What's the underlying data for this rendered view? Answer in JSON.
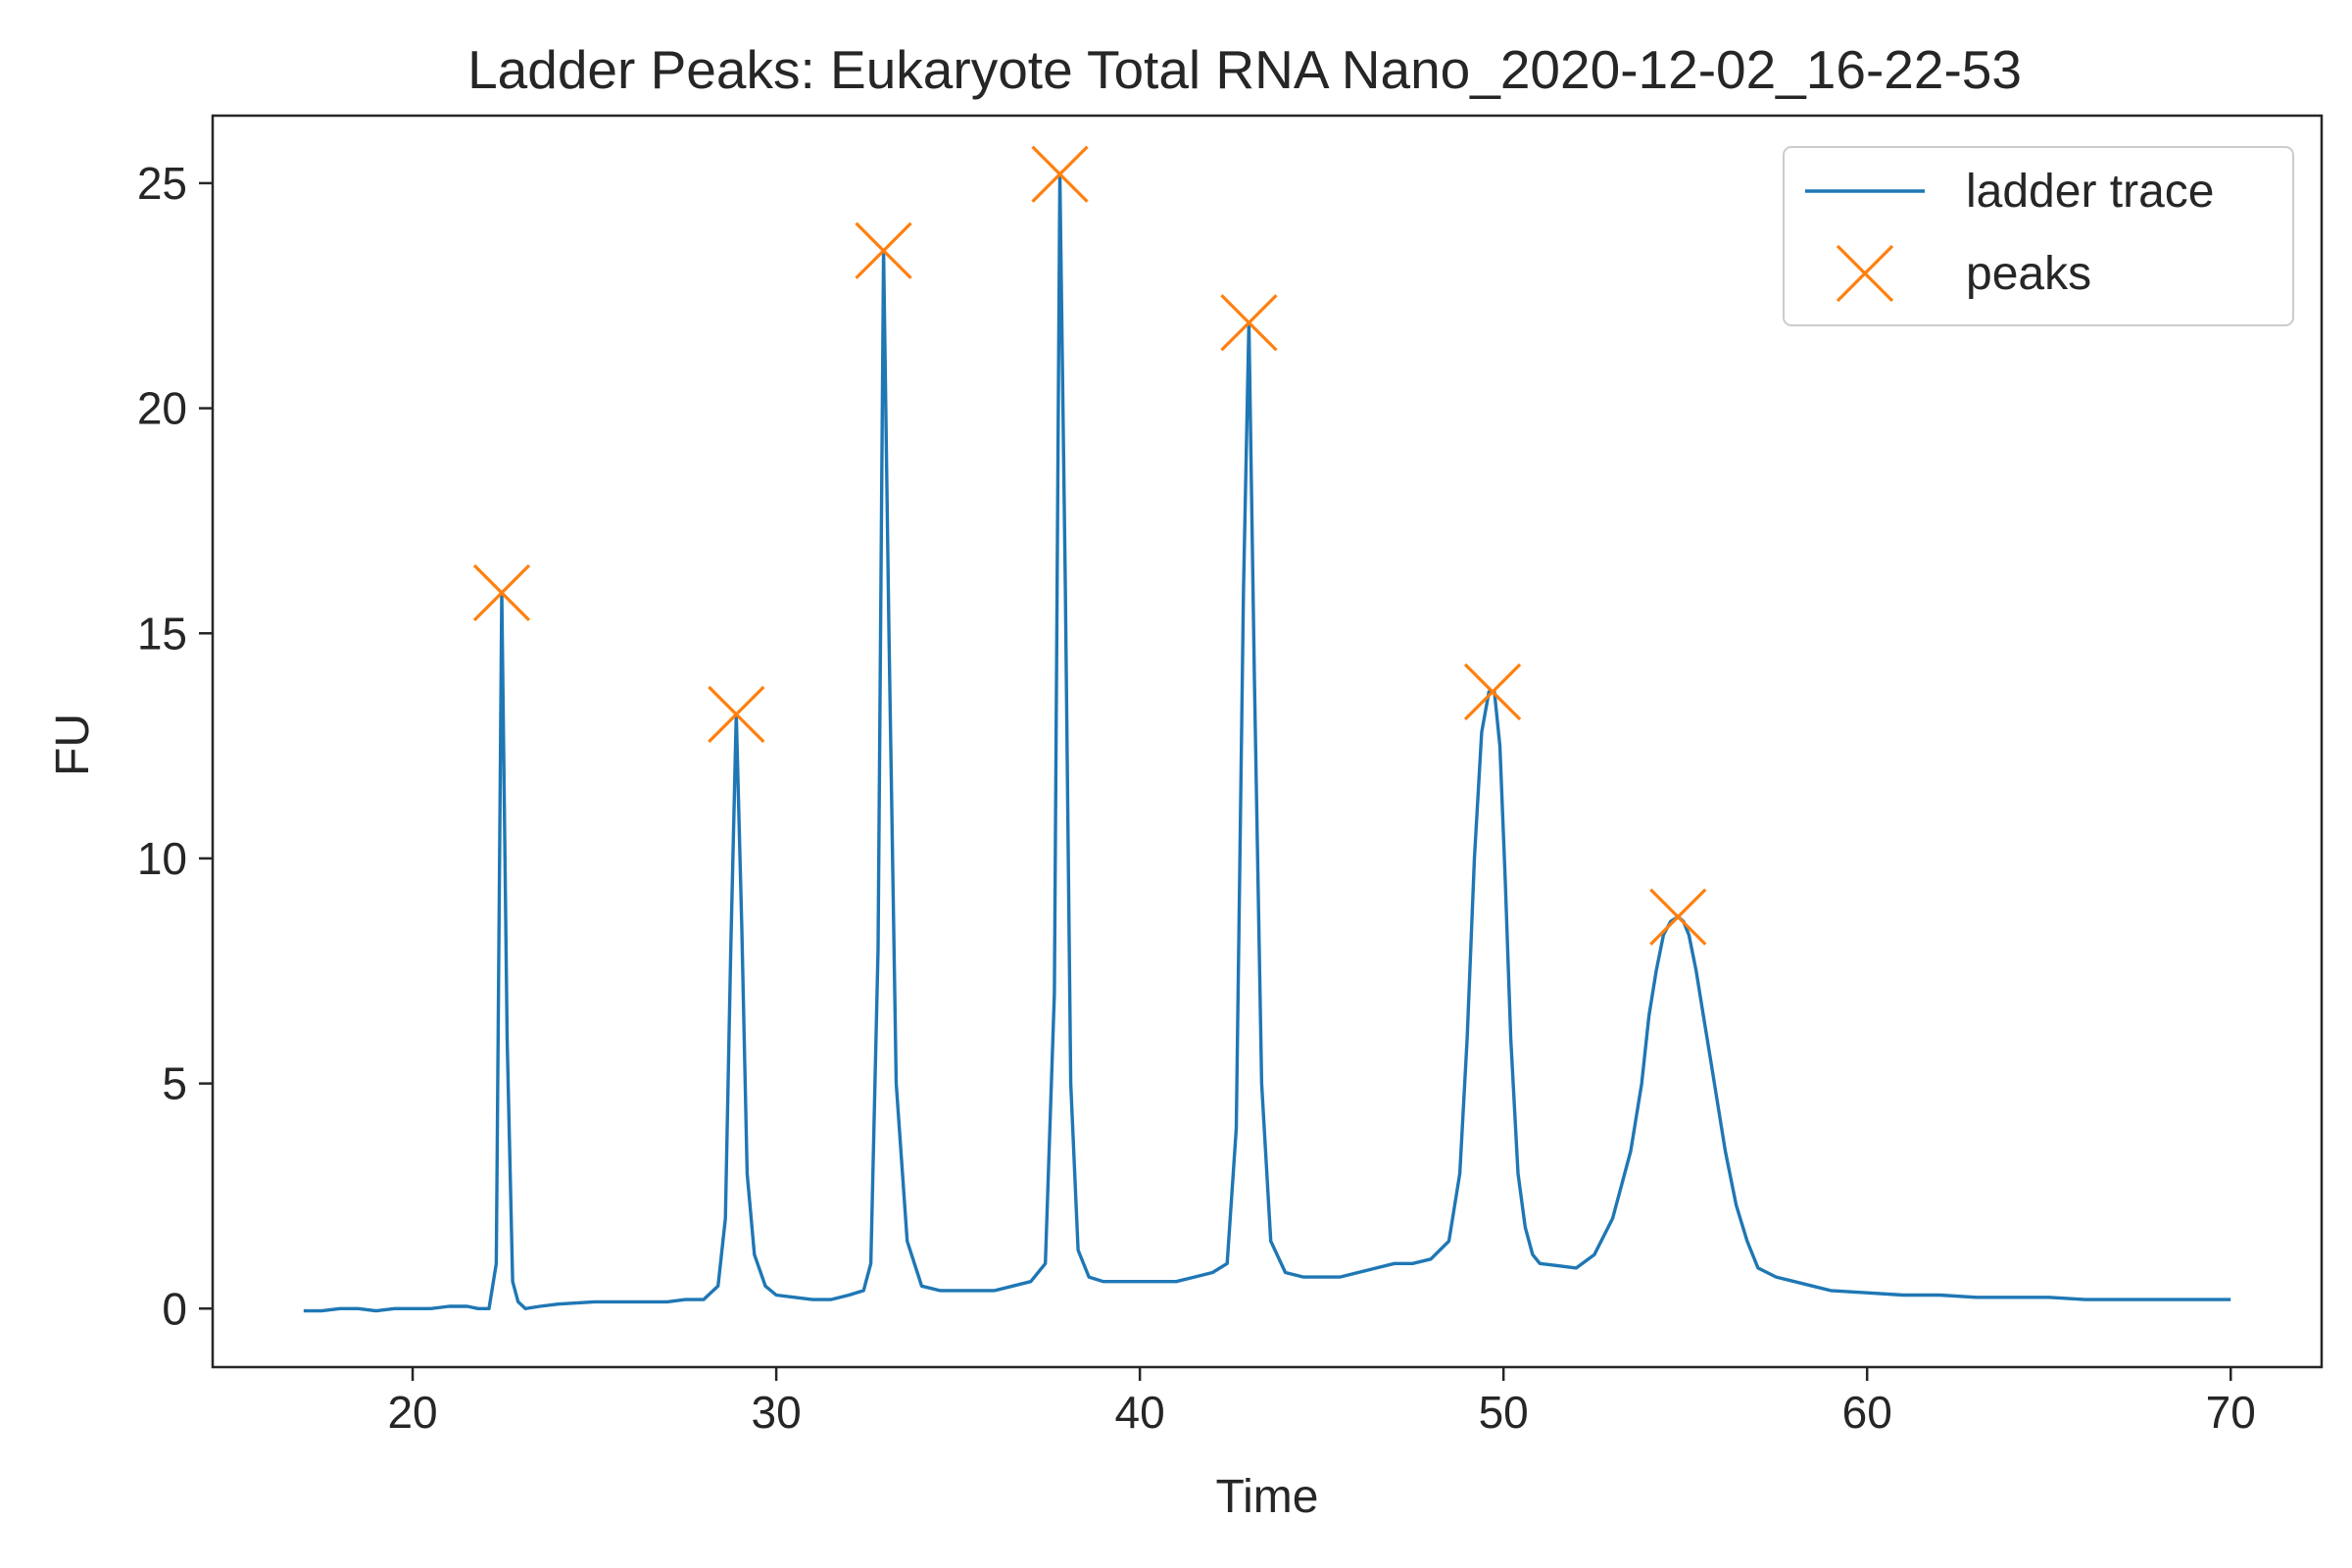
{
  "chart_data": {
    "type": "line",
    "title": "Ladder Peaks: Eukaryote Total RNA Nano_2020-12-02_16-22-53",
    "xlabel": "Time",
    "ylabel": "FU",
    "xlim": [
      14.5,
      72.5
    ],
    "ylim": [
      -1.3,
      26.5
    ],
    "xticks": [
      20,
      30,
      40,
      50,
      60,
      70
    ],
    "yticks": [
      0,
      5,
      10,
      15,
      20,
      25
    ],
    "grid": false,
    "legend_position": "top-right",
    "colors": {
      "trace": "#1f77b4",
      "peaks": "#ff7f0e",
      "axes": "#262626"
    },
    "series": [
      {
        "name": "ladder trace",
        "kind": "line",
        "x": [
          17.0,
          17.5,
          18.0,
          18.5,
          19.0,
          19.5,
          20.0,
          20.5,
          21.0,
          21.5,
          21.8,
          22.1,
          22.3,
          22.45,
          22.6,
          22.75,
          22.9,
          23.1,
          23.5,
          24.0,
          25.0,
          26.0,
          27.0,
          27.5,
          28.0,
          28.4,
          28.6,
          28.75,
          28.9,
          29.05,
          29.2,
          29.4,
          29.7,
          30.0,
          30.5,
          31.0,
          31.5,
          32.0,
          32.4,
          32.6,
          32.8,
          32.95,
          33.1,
          33.3,
          33.6,
          34.0,
          34.5,
          35.0,
          35.5,
          36.0,
          36.5,
          37.0,
          37.4,
          37.65,
          37.8,
          37.95,
          38.1,
          38.3,
          38.6,
          39.0,
          39.5,
          40.0,
          40.5,
          41.0,
          41.5,
          42.0,
          42.4,
          42.65,
          42.85,
          43.0,
          43.15,
          43.35,
          43.6,
          44.0,
          44.5,
          45.0,
          45.5,
          46.0,
          46.5,
          47.0,
          47.5,
          48.0,
          48.5,
          48.8,
          49.0,
          49.2,
          49.4,
          49.6,
          49.75,
          49.9,
          50.05,
          50.2,
          50.4,
          50.6,
          50.8,
          51.0,
          51.5,
          52.0,
          52.5,
          53.0,
          53.5,
          53.8,
          54.0,
          54.2,
          54.4,
          54.6,
          54.8,
          54.95,
          55.1,
          55.3,
          55.5,
          55.7,
          55.9,
          56.1,
          56.4,
          56.7,
          57.0,
          57.5,
          58.0,
          58.5,
          59.0,
          60.0,
          61.0,
          62.0,
          63.0,
          64.0,
          65.0,
          66.0,
          67.0,
          68.0,
          69.0,
          70.0
        ],
        "y": [
          -0.05,
          -0.05,
          0.0,
          0.0,
          -0.05,
          0.0,
          0.0,
          0.0,
          0.05,
          0.05,
          0.0,
          0.0,
          1.0,
          15.9,
          6.0,
          0.6,
          0.15,
          0.0,
          0.05,
          0.1,
          0.15,
          0.15,
          0.15,
          0.2,
          0.2,
          0.5,
          2.0,
          8.0,
          13.2,
          8.5,
          3.0,
          1.2,
          0.5,
          0.3,
          0.25,
          0.2,
          0.2,
          0.3,
          0.4,
          1.0,
          8.0,
          23.5,
          15.0,
          5.0,
          1.5,
          0.5,
          0.4,
          0.4,
          0.4,
          0.4,
          0.5,
          0.6,
          1.0,
          7.0,
          25.2,
          16.0,
          5.0,
          1.3,
          0.7,
          0.6,
          0.6,
          0.6,
          0.6,
          0.6,
          0.7,
          0.8,
          1.0,
          4.0,
          16.0,
          21.9,
          14.0,
          5.0,
          1.5,
          0.8,
          0.7,
          0.7,
          0.7,
          0.8,
          0.9,
          1.0,
          1.0,
          1.1,
          1.5,
          3.0,
          6.0,
          10.0,
          12.8,
          13.7,
          13.7,
          12.5,
          9.5,
          6.0,
          3.0,
          1.8,
          1.2,
          1.0,
          0.95,
          0.9,
          1.2,
          2.0,
          3.5,
          5.0,
          6.5,
          7.5,
          8.3,
          8.6,
          8.7,
          8.6,
          8.3,
          7.5,
          6.5,
          5.5,
          4.5,
          3.5,
          2.3,
          1.5,
          0.9,
          0.7,
          0.6,
          0.5,
          0.4,
          0.35,
          0.3,
          0.3,
          0.25,
          0.25,
          0.25,
          0.2,
          0.2,
          0.2,
          0.2,
          0.2
        ]
      },
      {
        "name": "peaks",
        "kind": "marker",
        "marker": "x",
        "x": [
          22.45,
          28.9,
          32.95,
          37.8,
          43.0,
          49.7,
          54.8
        ],
        "y": [
          15.9,
          13.2,
          23.5,
          25.2,
          21.9,
          13.7,
          8.7
        ]
      }
    ]
  }
}
